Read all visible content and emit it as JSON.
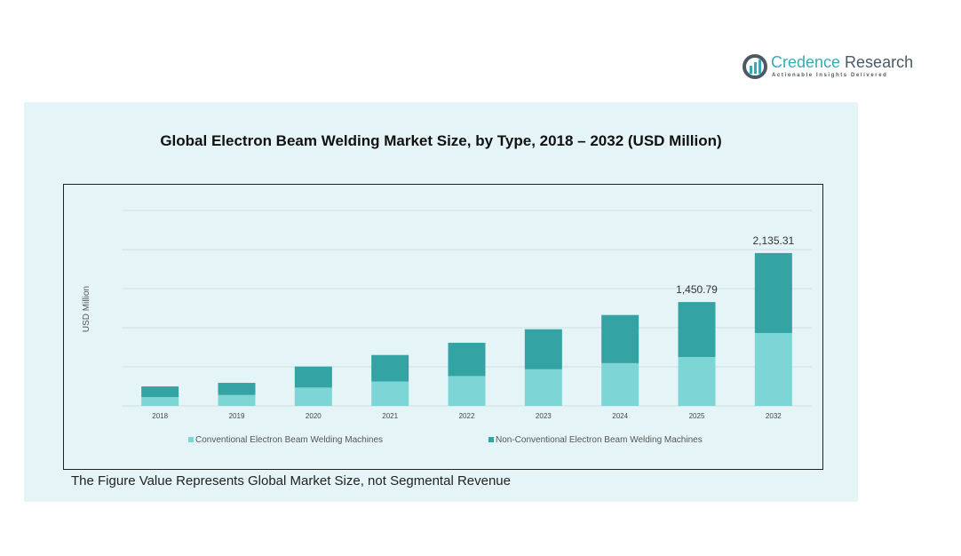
{
  "brand": {
    "name_part1": "Credence",
    "name_part2": " Research",
    "tagline": "Actionable Insights Delivered"
  },
  "note": "The Figure Value Represents Global Market Size, not Segmental Revenue",
  "chart_data": {
    "type": "bar",
    "stacked": true,
    "title": "Global Electron Beam Welding Market Size, by Type, 2018 – 2032 (USD Million)",
    "xlabel": "",
    "ylabel": "USD Million",
    "categories": [
      "2018",
      "2019",
      "2020",
      "2021",
      "2022",
      "2023",
      "2024",
      "2025",
      "2032"
    ],
    "series": [
      {
        "name": "Conventional Electron Beam Welding Machines",
        "color": "#7dd5d6",
        "values": [
          123,
          152,
          256,
          341,
          417,
          512,
          597,
          683,
          1018
        ]
      },
      {
        "name": "Non-Conventional Electron Beam Welding Machines",
        "color": "#33a3a3",
        "values": [
          149,
          170,
          294,
          370,
          465,
          559,
          673,
          767.79,
          1117.31
        ]
      }
    ],
    "data_labels": {
      "2025": "1,450.79",
      "2032": "2,135.31"
    },
    "ylim": [
      0,
      2730
    ],
    "grid": true,
    "legend": "bottom"
  }
}
